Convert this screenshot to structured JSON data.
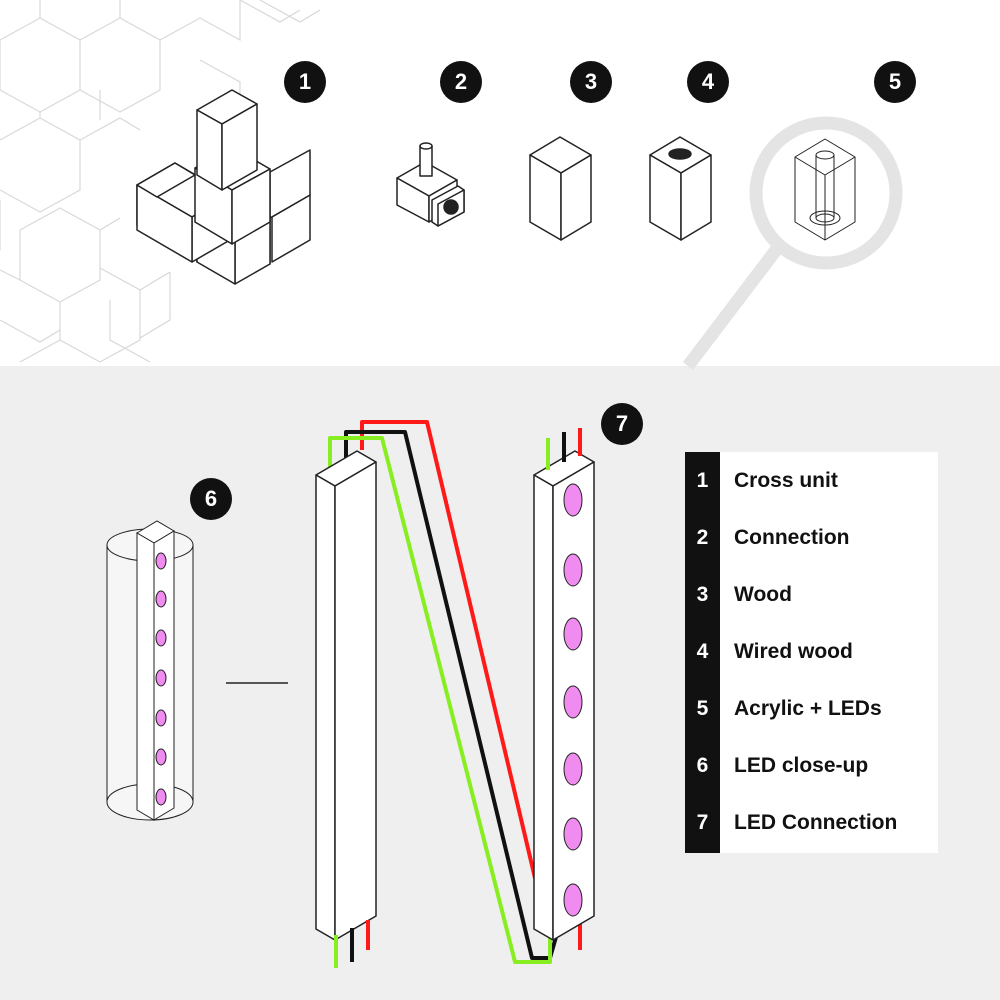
{
  "markers": [
    "1",
    "2",
    "3",
    "4",
    "5",
    "6",
    "7"
  ],
  "legend": [
    {
      "num": "1",
      "label": "Cross unit"
    },
    {
      "num": "2",
      "label": "Connection"
    },
    {
      "num": "3",
      "label": "Wood"
    },
    {
      "num": "4",
      "label": "Wired wood"
    },
    {
      "num": "5",
      "label": "Acrylic + LEDs"
    },
    {
      "num": "6",
      "label": "LED close-up"
    },
    {
      "num": "7",
      "label": "LED Connection"
    }
  ],
  "colors": {
    "wire_red": "#ff1a1a",
    "wire_black": "#111111",
    "wire_green": "#88ee22",
    "led": "#f08cf0",
    "lower_background": "#efefef",
    "pattern": "#d8d8d8",
    "magnifier": "#e4e4e4"
  }
}
